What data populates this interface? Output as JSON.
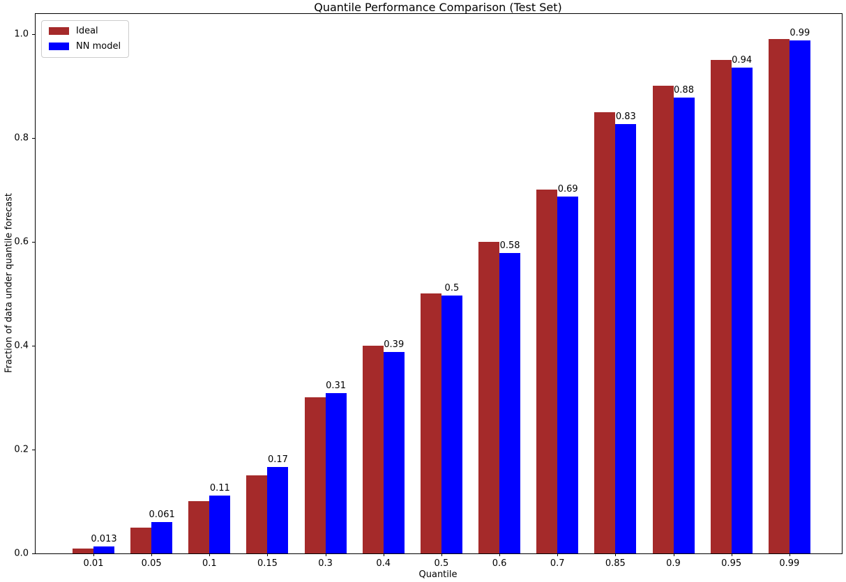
{
  "chart_data": {
    "type": "bar",
    "title": "Quantile Performance Comparison (Test Set)",
    "xlabel": "Quantile",
    "ylabel": "Fraction of data under quantile forecast",
    "categories": [
      "0.01",
      "0.05",
      "0.1",
      "0.15",
      "0.3",
      "0.4",
      "0.5",
      "0.6",
      "0.7",
      "0.85",
      "0.9",
      "0.95",
      "0.99"
    ],
    "series": [
      {
        "name": "Ideal",
        "color": "#A52A2A",
        "values": [
          0.01,
          0.05,
          0.1,
          0.15,
          0.3,
          0.4,
          0.5,
          0.6,
          0.7,
          0.85,
          0.9,
          0.95,
          0.99
        ]
      },
      {
        "name": "NN model",
        "color": "#0000FF",
        "values": [
          0.013,
          0.061,
          0.112,
          0.167,
          0.309,
          0.388,
          0.497,
          0.578,
          0.687,
          0.827,
          0.878,
          0.935,
          0.988
        ],
        "bar_labels": [
          "0.013",
          "0.061",
          "0.11",
          "0.17",
          "0.31",
          "0.39",
          "0.5",
          "0.58",
          "0.69",
          "0.83",
          "0.88",
          "0.94",
          "0.99"
        ]
      }
    ],
    "y_ticks": [
      "0.0",
      "0.2",
      "0.4",
      "0.6",
      "0.8",
      "1.0"
    ],
    "ylim": [
      0.0,
      1.04
    ],
    "grid": false,
    "legend_position": "upper left",
    "background_color": "#ffffff",
    "text_color": "#000000"
  }
}
